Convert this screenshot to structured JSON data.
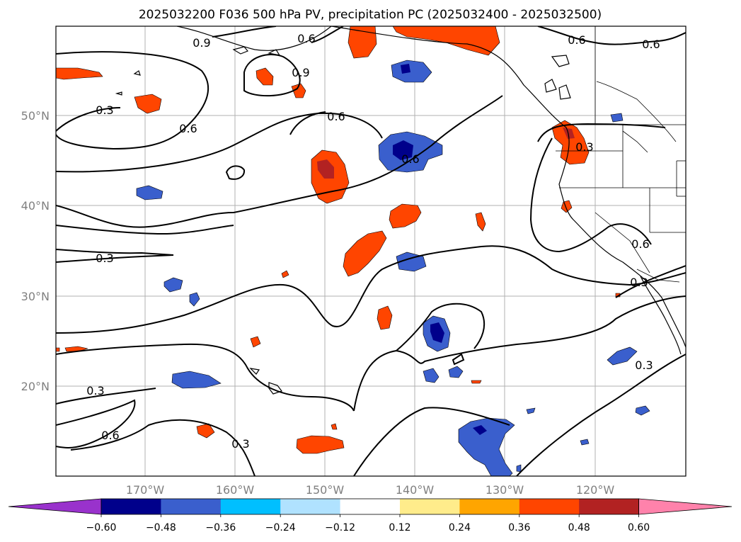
{
  "title": "2025032200 F036 500 hPa PV, precipitation PC (2025032400 - 2025032500)",
  "lat_labels": [
    "50°N",
    "40°N",
    "30°N",
    "20°N"
  ],
  "lon_labels": [
    "170°W",
    "160°W",
    "150°W",
    "140°W",
    "130°W",
    "120°W"
  ],
  "contour_labels": [
    "0.9",
    "0.6",
    "0.6",
    "0.6",
    "0.3",
    "0.6",
    "0.9",
    "0.6",
    "0.6",
    "0.3",
    "0.3",
    "0.6",
    "0.3",
    "0.3",
    "0.6",
    "0.3",
    "0.3"
  ],
  "colorbar": {
    "ticks": [
      "−0.60",
      "−0.48",
      "−0.36",
      "−0.24",
      "−0.12",
      "0.12",
      "0.24",
      "0.36",
      "0.48",
      "0.60"
    ],
    "colors": [
      "#9932CC",
      "#00008B",
      "#3A5FCD",
      "#00BFFF",
      "#B0E2FF",
      "#FFFFFF",
      "#FFEC8B",
      "#FFA500",
      "#FF4500",
      "#B22222",
      "#FF82AB"
    ]
  },
  "colors": {
    "contour": "#000000",
    "coast": "#000000",
    "grid": "#b0b0b0"
  }
}
